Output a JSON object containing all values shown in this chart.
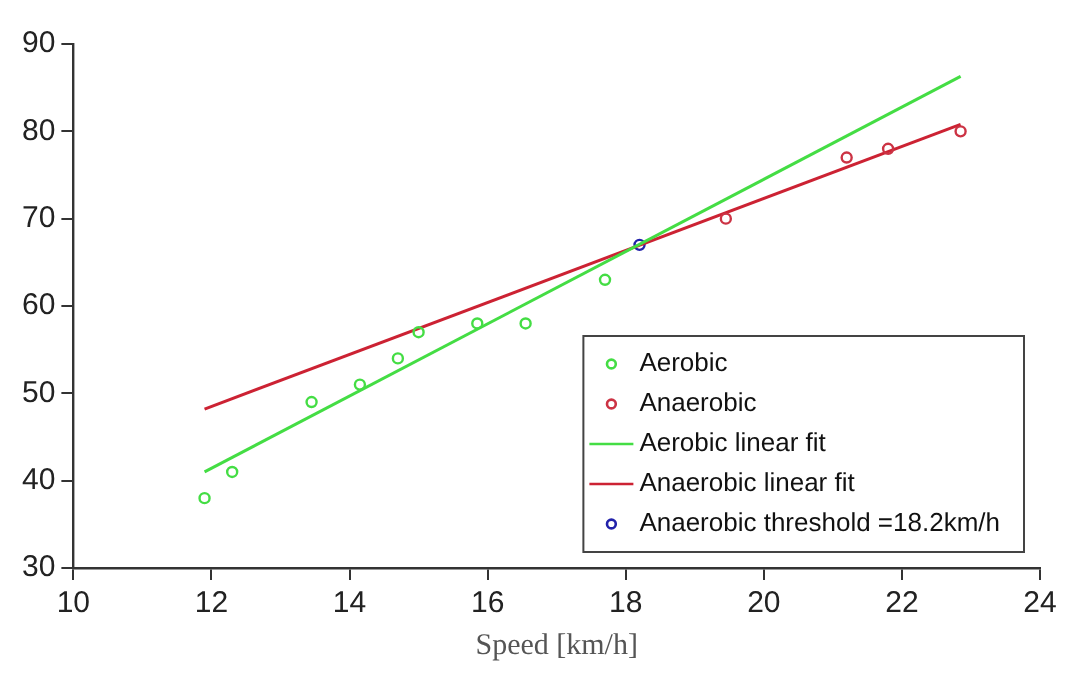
{
  "chart_data": {
    "type": "scatter",
    "xlabel": "Speed [km/h]",
    "xlim": [
      10,
      24
    ],
    "xticks": [
      10,
      12,
      14,
      16,
      18,
      20,
      22,
      24
    ],
    "ylim": [
      30,
      90
    ],
    "yticks": [
      30,
      40,
      50,
      60,
      70,
      80,
      90
    ],
    "grid": false,
    "legend": "bottom right",
    "series": [
      {
        "name": "Aerobic",
        "marker": "circle",
        "color": "#44dd44",
        "x": [
          11.9,
          12.3,
          13.45,
          14.15,
          14.7,
          15.0,
          15.85,
          16.55,
          17.7
        ],
        "values": [
          38,
          41,
          49,
          51,
          54,
          57,
          58,
          58,
          63
        ]
      },
      {
        "name": "Anaerobic",
        "marker": "circle",
        "color": "#cc3344",
        "x": [
          19.45,
          21.2,
          21.8,
          22.85
        ],
        "values": [
          70,
          77,
          78,
          80
        ]
      },
      {
        "name": "Aerobic linear fit",
        "type": "line",
        "marker": "none",
        "color": "#44dd44",
        "x": [
          11.9,
          22.85
        ],
        "values": [
          41,
          86.3
        ]
      },
      {
        "name": "Anaerobic linear fit",
        "type": "line",
        "marker": "none",
        "color": "#cc2233",
        "x": [
          11.9,
          22.85
        ],
        "values": [
          48.2,
          80.8
        ]
      },
      {
        "name": "Anaerobic threshold =18.2km/h",
        "marker": "circle",
        "color": "#2222aa",
        "x": [
          18.2
        ],
        "values": [
          67
        ]
      }
    ]
  }
}
